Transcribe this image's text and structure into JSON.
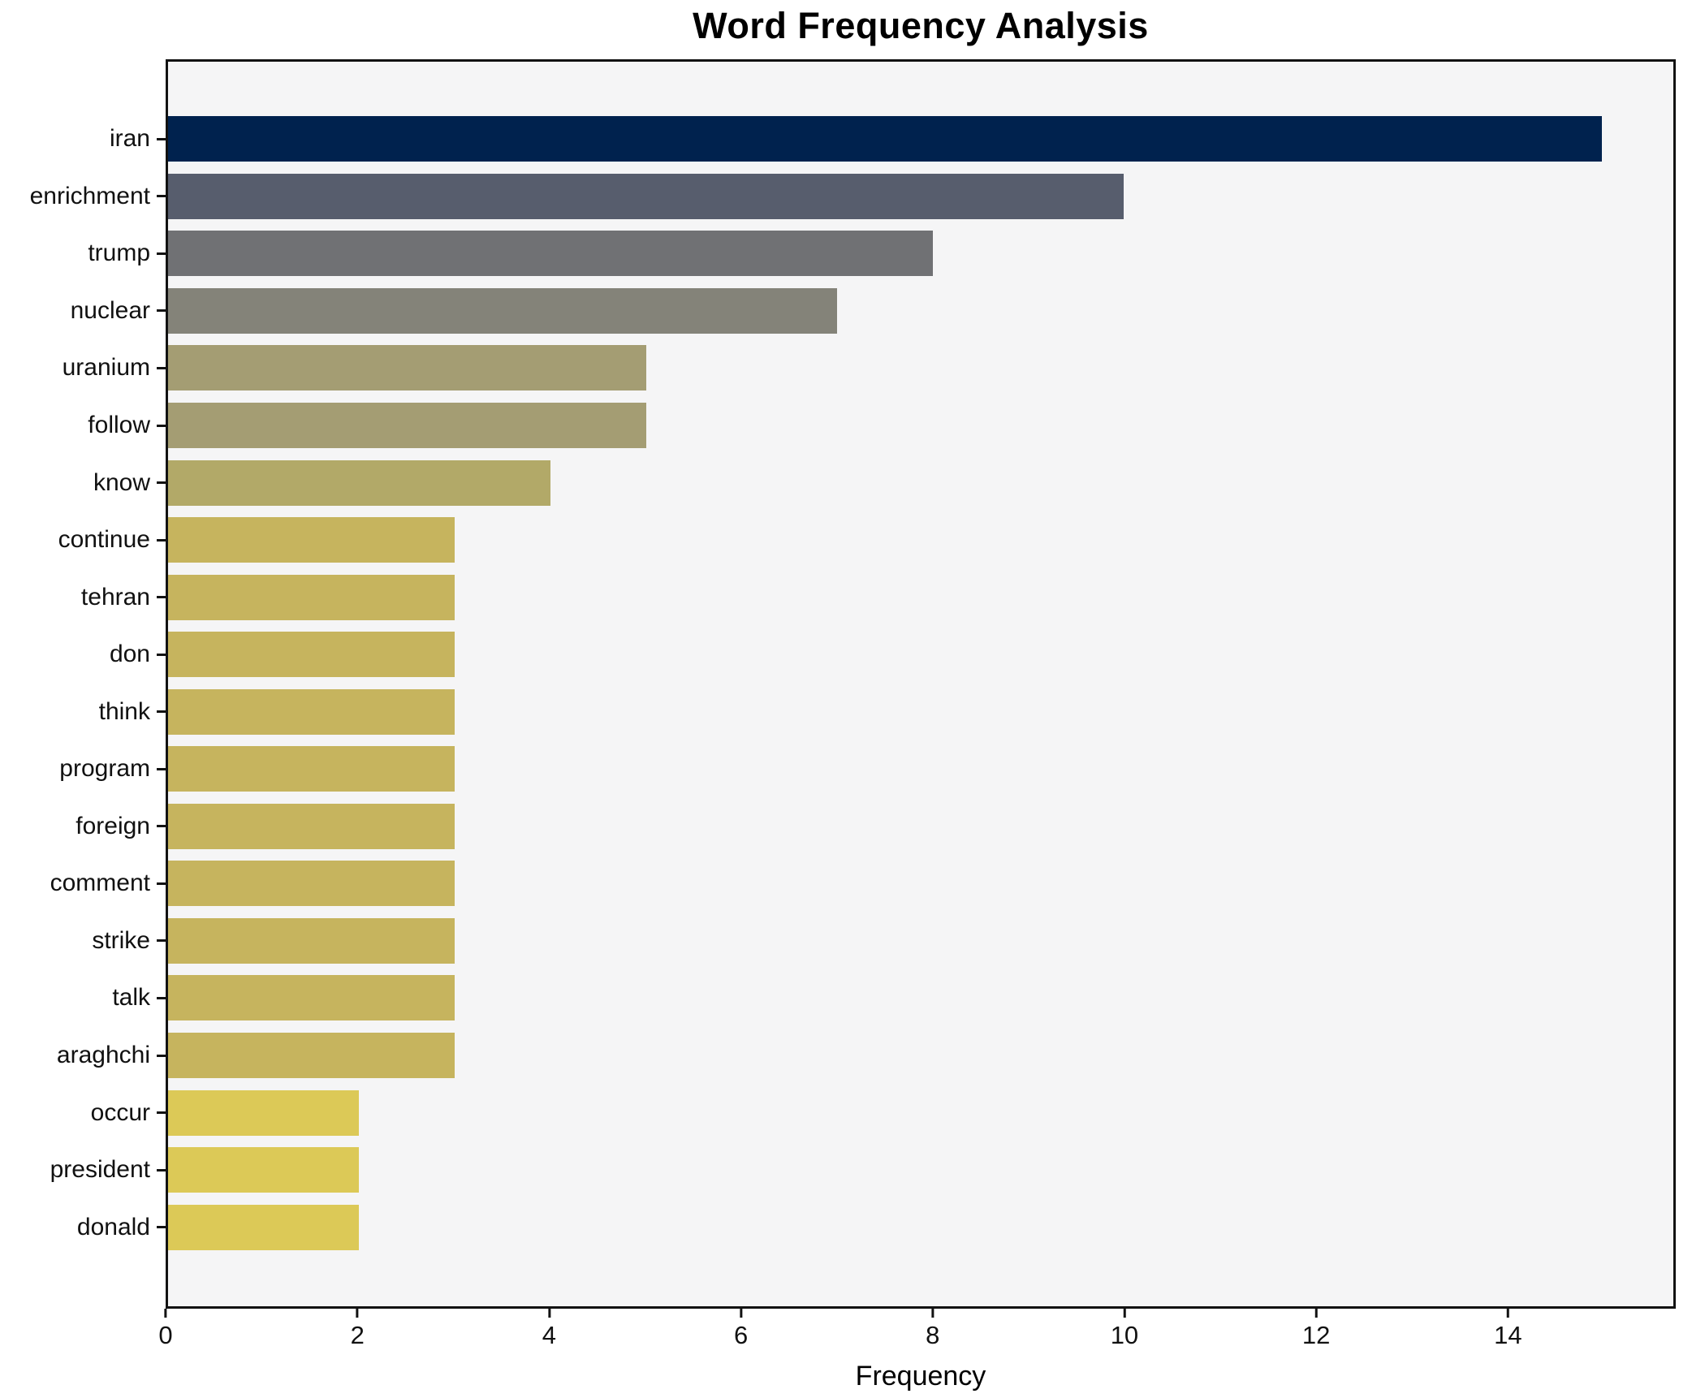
{
  "chart_data": {
    "type": "bar",
    "orientation": "horizontal",
    "title": "Word Frequency Analysis",
    "xlabel": "Frequency",
    "ylabel": "",
    "categories": [
      "iran",
      "enrichment",
      "trump",
      "nuclear",
      "uranium",
      "follow",
      "know",
      "continue",
      "tehran",
      "don",
      "think",
      "program",
      "foreign",
      "comment",
      "strike",
      "talk",
      "araghchi",
      "occur",
      "president",
      "donald"
    ],
    "values": [
      15,
      10,
      8,
      7,
      5,
      5,
      4,
      3,
      3,
      3,
      3,
      3,
      3,
      3,
      3,
      3,
      3,
      2,
      2,
      2
    ],
    "bar_colors": [
      "#00224e",
      "#575d6d",
      "#707174",
      "#848379",
      "#a49d73",
      "#a49d73",
      "#b2a968",
      "#c6b45e",
      "#c6b45e",
      "#c6b45e",
      "#c6b45e",
      "#c6b45e",
      "#c6b45e",
      "#c6b45e",
      "#c6b45e",
      "#c6b45e",
      "#c6b45e",
      "#dcc957",
      "#dcc957",
      "#dcc957"
    ],
    "xticks": [
      0,
      2,
      4,
      6,
      8,
      10,
      12,
      14
    ],
    "xlim": [
      0,
      15.75
    ],
    "grid": false,
    "legend": "none",
    "plot_background": "#f5f5f6",
    "figure_background": "#ffffff",
    "spine_color": "#121212"
  }
}
